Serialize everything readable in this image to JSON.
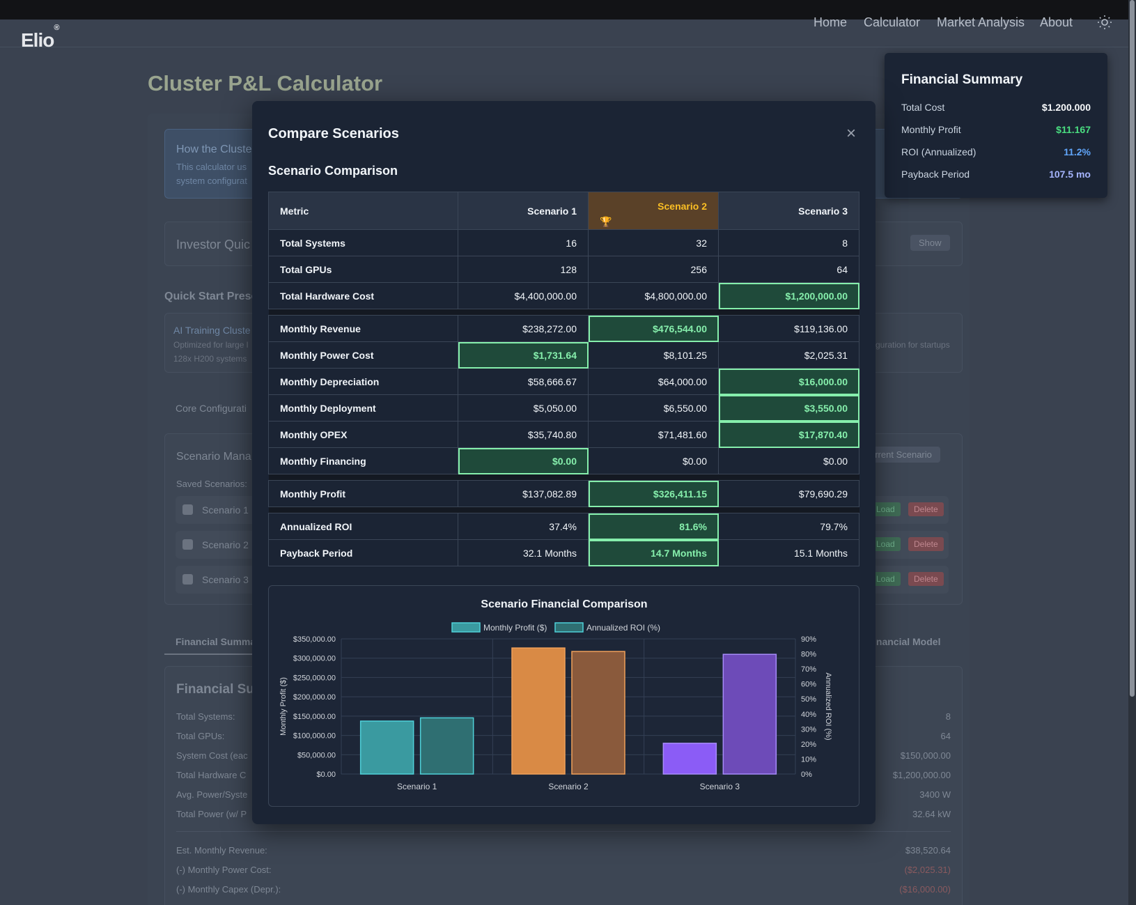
{
  "nav": {
    "logo": "Elio",
    "logo_mark": "®",
    "links": [
      "Home",
      "Calculator",
      "Market Analysis",
      "About"
    ]
  },
  "page": {
    "title": "Cluster P&L Calculator",
    "how_title": "How the Cluste",
    "how_text_1": "This calculator us",
    "how_text_2": "system configurat",
    "investor": "Investor Quic",
    "show_btn": "Show",
    "quick_start": "Quick Start Prese",
    "preset_title": "AI Training Cluste",
    "preset_desc_1": "Optimized for large l",
    "preset_desc_2": "128x H200 systems",
    "preset_right": "guration for startups",
    "core_config": "Core Configurati",
    "scenario_mgr": "Scenario Mana",
    "current_scenario": "urrent Scenario",
    "saved_scenarios": "Saved Scenarios:",
    "saved": [
      "Scenario 1",
      "Scenario 2",
      "Scenario 3"
    ],
    "load_btn": "Load",
    "delete_btn": "Delete",
    "tab_fin_summary": "Financial Summar",
    "tab_fin_model": "inancial Model",
    "fin_sum_title": "Financial Sum",
    "rows_left": [
      "Total Systems:",
      "Total GPUs:",
      "System Cost (eac",
      "Total Hardware C",
      "Avg. Power/Syste",
      "Total Power (w/ P"
    ],
    "rows_right": [
      "8",
      "64",
      "$150,000.00",
      "$1,200,000.00",
      "3400 W",
      "32.64 kW"
    ],
    "rows2_left": [
      "Est. Monthly Revenue:",
      "(-) Monthly Power Cost:",
      "(-) Monthly Capex (Depr.):"
    ],
    "rows2_right": [
      "$38,520.64",
      "($2,025.31)",
      "($16,000.00)"
    ]
  },
  "financial_summary": {
    "title": "Financial Summary",
    "rows": [
      {
        "label": "Total Cost",
        "value": "$1.200.000",
        "color": "#f8fafc"
      },
      {
        "label": "Monthly Profit",
        "value": "$11.167",
        "color": "#4ade80"
      },
      {
        "label": "ROI (Annualized)",
        "value": "11.2%",
        "color": "#60a5fa"
      },
      {
        "label": "Payback Period",
        "value": "107.5 mo",
        "color": "#a5b4fc"
      }
    ]
  },
  "modal": {
    "title": "Compare Scenarios",
    "close_icon": "×",
    "section": "Scenario Comparison",
    "headers": [
      "Metric",
      "Scenario 1",
      "Scenario 2",
      "Scenario 3"
    ],
    "trophy_icon": "🏆",
    "rows": [
      {
        "metric": "Total Systems",
        "values": [
          "16",
          "32",
          "8"
        ],
        "best": -1
      },
      {
        "metric": "Total GPUs",
        "values": [
          "128",
          "256",
          "64"
        ],
        "best": -1
      },
      {
        "metric": "Total Hardware Cost",
        "values": [
          "$4,400,000.00",
          "$4,800,000.00",
          "$1,200,000.00"
        ],
        "best": 2
      },
      {
        "sep": true
      },
      {
        "metric": "Monthly Revenue",
        "values": [
          "$238,272.00",
          "$476,544.00",
          "$119,136.00"
        ],
        "best": 1
      },
      {
        "metric": "Monthly Power Cost",
        "values": [
          "$1,731.64",
          "$8,101.25",
          "$2,025.31"
        ],
        "best": 0
      },
      {
        "metric": "Monthly Depreciation",
        "values": [
          "$58,666.67",
          "$64,000.00",
          "$16,000.00"
        ],
        "best": 2
      },
      {
        "metric": "Monthly Deployment",
        "values": [
          "$5,050.00",
          "$6,550.00",
          "$3,550.00"
        ],
        "best": 2
      },
      {
        "metric": "Monthly OPEX",
        "values": [
          "$35,740.80",
          "$71,481.60",
          "$17,870.40"
        ],
        "best": 2
      },
      {
        "metric": "Monthly Financing",
        "values": [
          "$0.00",
          "$0.00",
          "$0.00"
        ],
        "best": 0
      },
      {
        "sep": true
      },
      {
        "metric": "Monthly Profit",
        "values": [
          "$137,082.89",
          "$326,411.15",
          "$79,690.29"
        ],
        "best": 1
      },
      {
        "sep": true
      },
      {
        "metric": "Annualized ROI",
        "values": [
          "37.4%",
          "81.6%",
          "79.7%"
        ],
        "best": 1
      },
      {
        "metric": "Payback Period",
        "values": [
          "32.1 Months",
          "14.7 Months",
          "15.1 Months"
        ],
        "best": 1
      }
    ]
  },
  "chart_data": {
    "type": "bar",
    "title": "Scenario Financial Comparison",
    "categories": [
      "Scenario 1",
      "Scenario 2",
      "Scenario 3"
    ],
    "series": [
      {
        "name": "Monthly Profit ($)",
        "values": [
          137082.89,
          326411.15,
          79690.29
        ],
        "axis": "left"
      },
      {
        "name": "Annualized ROI (%)",
        "values": [
          37.4,
          81.6,
          79.7
        ],
        "axis": "right"
      }
    ],
    "ylabel": "Monthly Profit ($)",
    "y2label": "Annualized ROI (%)",
    "ylim": [
      0,
      350000
    ],
    "y2lim": [
      0,
      90
    ],
    "yticks": [
      "$0.00",
      "$50,000.00",
      "$100,000.00",
      "$150,000.00",
      "$200,000.00",
      "$250,000.00",
      "$300,000.00",
      "$350,000.00"
    ],
    "y2ticks": [
      "0%",
      "10%",
      "20%",
      "30%",
      "40%",
      "50%",
      "60%",
      "70%",
      "80%",
      "90%"
    ],
    "legend": "top",
    "grid": true,
    "bar_colors": {
      "profit": [
        "#3a9aa0",
        "#d98a45",
        "#8b5cf6"
      ],
      "roi": [
        "#2f6f72",
        "#8a5a3c",
        "#6d4bb8"
      ],
      "profit_border": [
        "#4fd1d9",
        "#f0a05a",
        "#a78bfa"
      ]
    }
  }
}
